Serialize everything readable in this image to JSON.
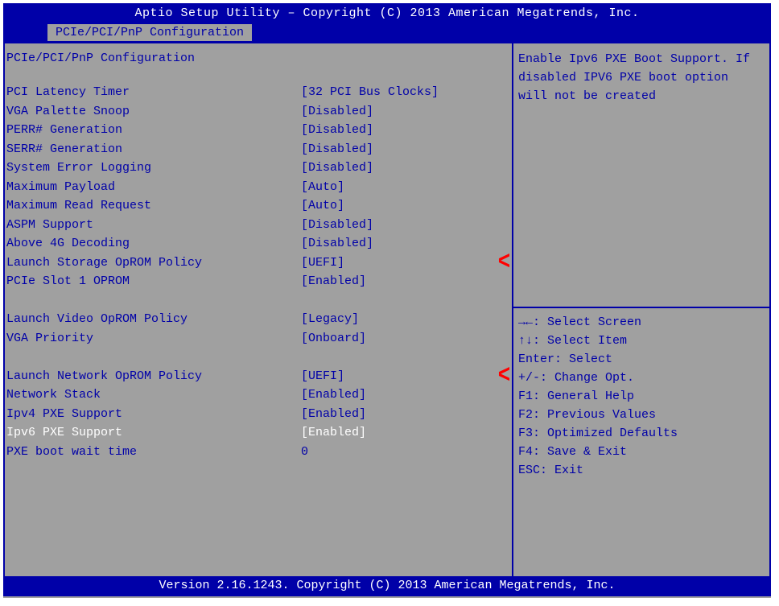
{
  "colors": {
    "bar": "#0000a8",
    "panel": "#a0a0a0",
    "text": "#0000a8",
    "sel": "#ffffff",
    "annot": "#ff0000"
  },
  "title": "Aptio Setup Utility – Copyright (C) 2013 American Megatrends, Inc.",
  "tab": "PCIe/PCI/PnP Configuration",
  "section_title": "PCIe/PCI/PnP Configuration",
  "settings": [
    {
      "label": "PCI Latency Timer",
      "value": "[32 PCI Bus Clocks]"
    },
    {
      "label": "VGA Palette Snoop",
      "value": "[Disabled]"
    },
    {
      "label": "PERR# Generation",
      "value": "[Disabled]"
    },
    {
      "label": "SERR# Generation",
      "value": "[Disabled]"
    },
    {
      "label": "System Error Logging",
      "value": "[Disabled]"
    },
    {
      "label": "Maximum Payload",
      "value": "[Auto]"
    },
    {
      "label": "Maximum Read Request",
      "value": "[Auto]"
    },
    {
      "label": "ASPM Support",
      "value": "[Disabled]"
    },
    {
      "label": "Above 4G Decoding",
      "value": "[Disabled]"
    },
    {
      "label": "Launch Storage OpROM Policy",
      "value": "[UEFI]",
      "annot": true
    },
    {
      "label": "PCIe Slot 1 OPROM",
      "value": "[Enabled]"
    },
    {
      "blank": true
    },
    {
      "label": "Launch Video OpROM Policy",
      "value": "[Legacy]"
    },
    {
      "label": "VGA Priority",
      "value": "[Onboard]"
    },
    {
      "blank": true
    },
    {
      "label": "Launch Network OpROM Policy",
      "value": "[UEFI]",
      "annot": true
    },
    {
      "label": "Network Stack",
      "value": "[Enabled]"
    },
    {
      "label": "Ipv4 PXE Support",
      "value": "[Enabled]"
    },
    {
      "label": "Ipv6 PXE Support",
      "value": "[Enabled]",
      "selected": true
    },
    {
      "label": "PXE boot wait time",
      "value": "0"
    }
  ],
  "help": "Enable Ipv6 PXE Boot Support. If disabled IPV6 PXE boot option will not be created",
  "keymap": [
    "→←: Select Screen",
    "↑↓: Select Item",
    "Enter: Select",
    "+/-: Change Opt.",
    "F1: General Help",
    "F2: Previous Values",
    "F3: Optimized Defaults",
    "F4: Save & Exit",
    "ESC: Exit"
  ],
  "footer": "Version 2.16.1243. Copyright (C) 2013 American Megatrends, Inc.",
  "annot_glyph": "<"
}
